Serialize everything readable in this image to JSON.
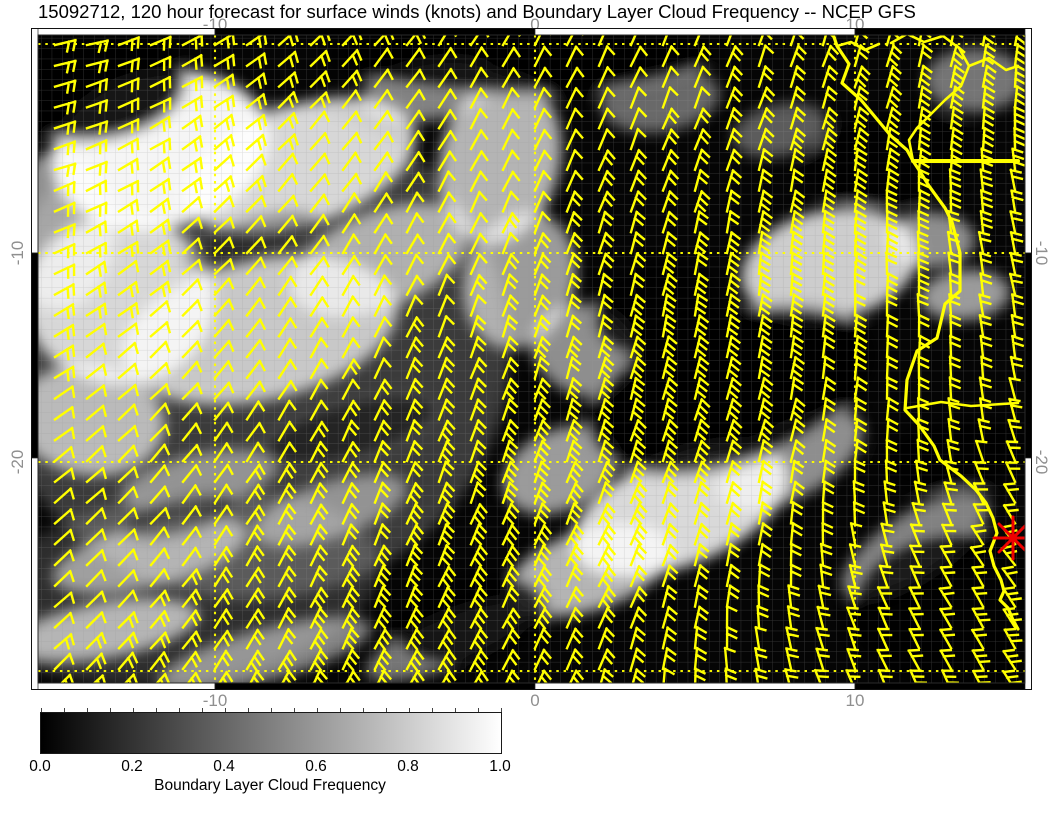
{
  "title": "15092712, 120 hour forecast for surface winds (knots) and Boundary Layer Cloud Frequency -- NCEP GFS",
  "map": {
    "lon_tick_labels": [
      "-10",
      "0",
      "10"
    ],
    "lat_tick_labels_left": [
      "-10",
      "-20"
    ],
    "lat_tick_labels_right": [
      "-10",
      "-20"
    ],
    "gridlines": {
      "lon": [
        "-10",
        "0",
        "10"
      ],
      "lat": [
        "0",
        "-10",
        "-20",
        "-30"
      ],
      "color": "#ffff00",
      "style": "dotted"
    },
    "wind_barbs": {
      "color": "#ffff00",
      "units": "knots"
    },
    "coastline": {
      "color": "#ffff00"
    },
    "marker": {
      "shape": "asterisk",
      "color": "#ee0000"
    },
    "field": {
      "name": "Boundary Layer Cloud Frequency",
      "scale_min": "0.0",
      "scale_max": "1.0",
      "min_color": "#000000",
      "max_color": "#ffffff"
    }
  },
  "colorbar": {
    "tick_labels": [
      "0.0",
      "0.2",
      "0.4",
      "0.6",
      "0.8",
      "1.0"
    ],
    "caption": "Boundary Layer Cloud Frequency"
  }
}
